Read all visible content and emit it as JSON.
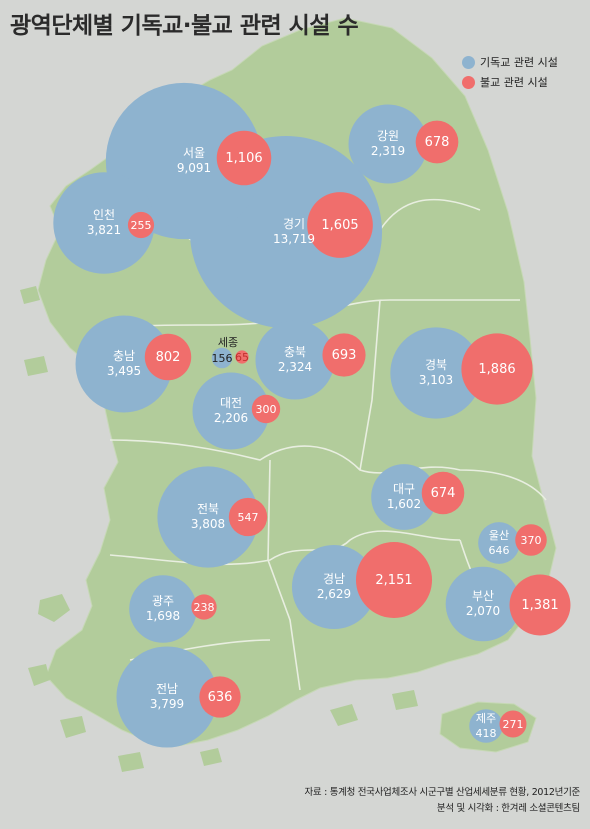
{
  "colors": {
    "background": "#d4d6d3",
    "land": "#b2cc9b",
    "border": "#e8eee0",
    "christian": "#8eb3cf",
    "buddhist": "#f06e6c",
    "bubble_text": "#ffffff"
  },
  "chart_data": {
    "type": "bubble-map",
    "title": "광역단체별 기독교·불교 관련 시설 수",
    "legend": {
      "position": "top-right",
      "items": [
        {
          "label": "기독교 관련 시설",
          "color": "#8eb3cf"
        },
        {
          "label": "불교 관련 시설",
          "color": "#f06e6c"
        }
      ]
    },
    "regions": [
      {
        "name": "서울",
        "christian": "9,091",
        "buddhist": "1,106"
      },
      {
        "name": "경기",
        "christian": "13,719",
        "buddhist": "1,605"
      },
      {
        "name": "인천",
        "christian": "3,821",
        "buddhist": "255"
      },
      {
        "name": "강원",
        "christian": "2,319",
        "buddhist": "678"
      },
      {
        "name": "충남",
        "christian": "3,495",
        "buddhist": "802"
      },
      {
        "name": "세종",
        "christian": "156",
        "buddhist": "65"
      },
      {
        "name": "충북",
        "christian": "2,324",
        "buddhist": "693"
      },
      {
        "name": "경북",
        "christian": "3,103",
        "buddhist": "1,886"
      },
      {
        "name": "대전",
        "christian": "2,206",
        "buddhist": "300"
      },
      {
        "name": "대구",
        "christian": "1,602",
        "buddhist": "674"
      },
      {
        "name": "전북",
        "christian": "3,808",
        "buddhist": "547"
      },
      {
        "name": "울산",
        "christian": "646",
        "buddhist": "370"
      },
      {
        "name": "경남",
        "christian": "2,629",
        "buddhist": "2,151"
      },
      {
        "name": "광주",
        "christian": "1,698",
        "buddhist": "238"
      },
      {
        "name": "부산",
        "christian": "2,070",
        "buddhist": "1,381"
      },
      {
        "name": "전남",
        "christian": "3,799",
        "buddhist": "636"
      },
      {
        "name": "제주",
        "christian": "418",
        "buddhist": "271"
      }
    ]
  },
  "source": {
    "line1": "자료 : 통계청 전국사업체조사 시군구별 산업세세분류 현황, 2012년기준",
    "line2": "분석 및 시각화 : 한겨레 소셜콘텐츠팀"
  }
}
